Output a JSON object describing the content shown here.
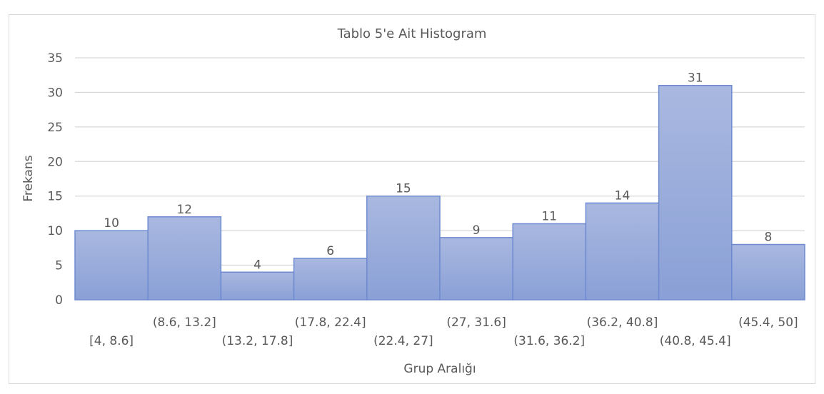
{
  "chart_data": {
    "type": "bar",
    "title": "Tablo 5'e Ait Histogram",
    "xlabel": "Grup Aralığı",
    "ylabel": "Frekans",
    "categories": [
      "[4, 8.6]",
      "(8.6, 13.2]",
      "(13.2, 17.8]",
      "(17.8, 22.4]",
      "(22.4, 27]",
      "(27, 31.6]",
      "(31.6, 36.2]",
      "(36.2, 40.8]",
      "(40.8, 45.4]",
      "(45.4, 50]"
    ],
    "values": [
      10,
      12,
      4,
      6,
      15,
      9,
      11,
      14,
      31,
      8
    ],
    "ylim": [
      0,
      35
    ],
    "yticks": [
      0,
      5,
      10,
      15,
      20,
      25,
      30,
      35
    ],
    "grid": true,
    "legend": "none",
    "colors": {
      "bar_top": "#a9b8e0",
      "bar_bottom": "#8aa0d6",
      "bar_stroke": "#6f8bd0",
      "grid": "#d9d9d9",
      "text": "#595959"
    }
  }
}
